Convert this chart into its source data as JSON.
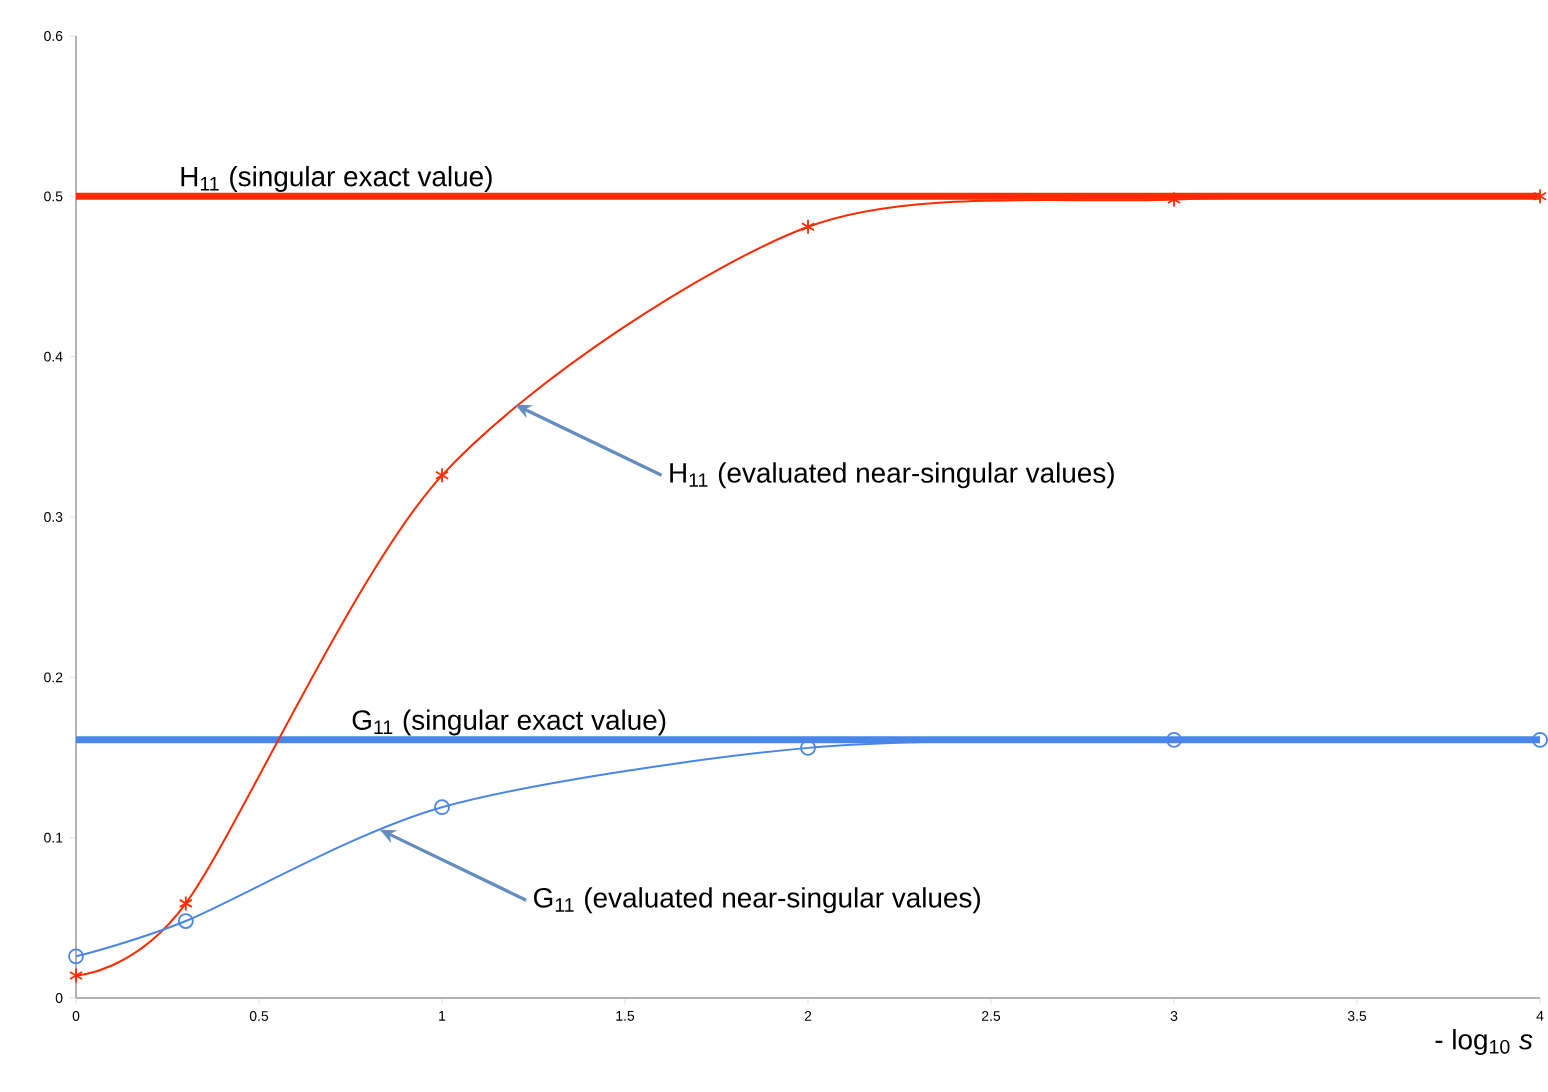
{
  "chart_data": {
    "type": "line",
    "xlabel": "- log$_{10}$ *s*",
    "xlim": [
      0,
      4
    ],
    "xticks": [
      0,
      0.5,
      1,
      1.5,
      2,
      2.5,
      3,
      3.5,
      4
    ],
    "ylim": [
      0,
      0.6
    ],
    "yticks": [
      0,
      0.1,
      0.2,
      0.3,
      0.4,
      0.5,
      0.6
    ],
    "grid": false,
    "line_style": "solid",
    "series": [
      {
        "x": [
          0,
          0.3,
          1,
          2,
          3,
          4
        ],
        "values": [
          0.014,
          0.059,
          0.326,
          0.481,
          0.498,
          0.5
        ],
        "color": "#ff2a00",
        "marker": "cross"
      },
      {
        "x": [
          0,
          0.3,
          1,
          2,
          3,
          4
        ],
        "values": [
          0.026,
          0.048,
          0.119,
          0.156,
          0.161,
          0.161
        ],
        "color": "#4a86e8",
        "marker": "circle"
      }
    ],
    "ref_lines": [
      {
        "axis": "y",
        "value": 0.5,
        "label": "H$_{11}$ (singular exact value)",
        "color": "#ff2a00"
      },
      {
        "axis": "y",
        "value": 0.161,
        "label": "G$_{11}$ (singular exact value)",
        "color": "#4a86e8"
      }
    ],
    "annotations": [
      {
        "text": "H$_{11}$ (evaluated near-singular values)",
        "x": 1.2,
        "y": 0.37
      },
      {
        "text": "G$_{11}$ (evaluated near-singular values)",
        "x": 0.83,
        "y": 0.105
      }
    ]
  }
}
